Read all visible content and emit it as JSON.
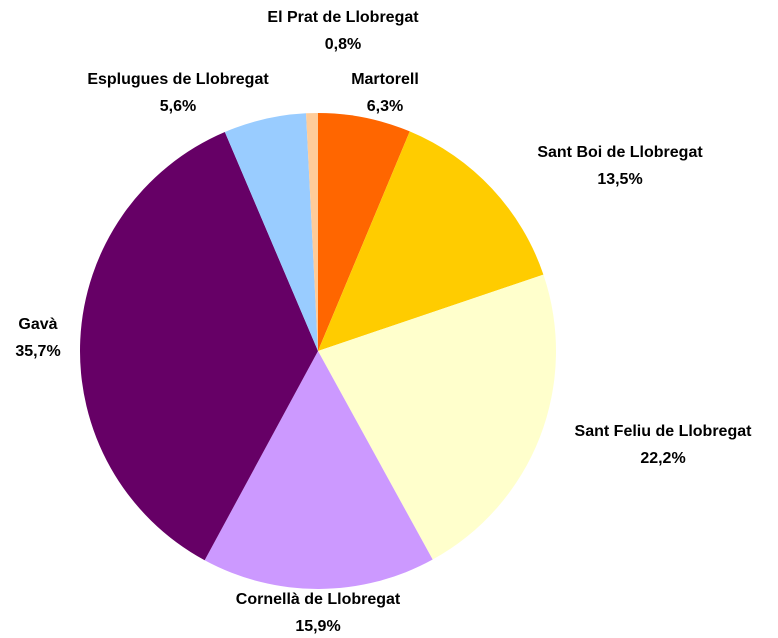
{
  "chart_data": {
    "type": "pie",
    "categories": [
      "Martorell",
      "Sant Boi de Llobregat",
      "Sant Feliu de Llobregat",
      "Cornellà de Llobregat",
      "Gavà",
      "Esplugues de Llobregat",
      "El Prat de Llobregat"
    ],
    "values": [
      6.3,
      13.5,
      22.2,
      15.9,
      35.7,
      5.6,
      0.8
    ],
    "value_labels": [
      "6,3%",
      "13,5%",
      "22,2%",
      "15,9%",
      "35,7%",
      "5,6%",
      "0,8%"
    ],
    "colors": [
      "#ff6600",
      "#ffcc00",
      "#ffffcc",
      "#cc99ff",
      "#660066",
      "#99ccff",
      "#ffcc99"
    ]
  }
}
